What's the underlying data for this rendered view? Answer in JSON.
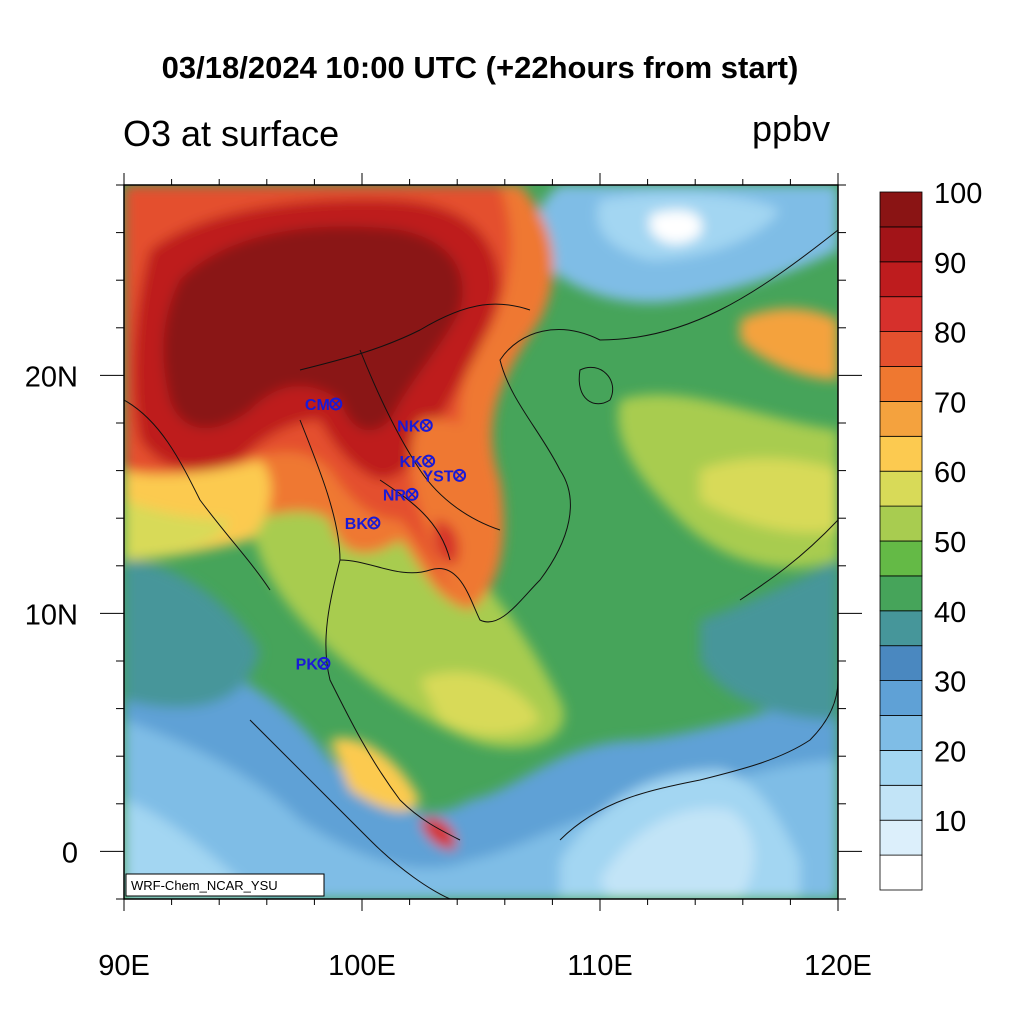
{
  "title": "03/18/2024 10:00 UTC (+22hours from start)",
  "subtitle": "O3 at surface",
  "units": "ppbv",
  "credit": "WRF-Chem_NCAR_YSU",
  "axes": {
    "x_ticks": [
      {
        "value": 90,
        "label": "90E"
      },
      {
        "value": 100,
        "label": "100E"
      },
      {
        "value": 110,
        "label": "110E"
      },
      {
        "value": 120,
        "label": "120E"
      }
    ],
    "y_ticks": [
      {
        "value": 0,
        "label": "0"
      },
      {
        "value": 10,
        "label": "10N"
      },
      {
        "value": 20,
        "label": "20N"
      }
    ],
    "lon_range": [
      90,
      120
    ],
    "lat_range": [
      -2,
      28
    ]
  },
  "colorbar": {
    "labels": [
      "10",
      "20",
      "30",
      "40",
      "50",
      "60",
      "70",
      "80",
      "90",
      "100"
    ],
    "colors": [
      "#ffffff",
      "#dceffb",
      "#c2e4f7",
      "#a3d6f2",
      "#7fbde6",
      "#5fa1d6",
      "#4a88c0",
      "#46969a",
      "#46a45a",
      "#64ba46",
      "#a8cc50",
      "#d8da58",
      "#fcca50",
      "#f4a23e",
      "#ef7830",
      "#e4502e",
      "#d6302c",
      "#be1c1e",
      "#a21418",
      "#8a1414"
    ]
  },
  "stations": [
    {
      "code": "CM",
      "lon": 98.9,
      "lat": 18.8
    },
    {
      "code": "NK",
      "lon": 102.7,
      "lat": 17.9
    },
    {
      "code": "KK",
      "lon": 102.8,
      "lat": 16.4
    },
    {
      "code": "YST",
      "lon": 104.1,
      "lat": 15.8
    },
    {
      "code": "NR",
      "lon": 102.1,
      "lat": 15.0
    },
    {
      "code": "BK",
      "lon": 100.5,
      "lat": 13.8
    },
    {
      "code": "PK",
      "lon": 98.4,
      "lat": 7.9
    }
  ]
}
